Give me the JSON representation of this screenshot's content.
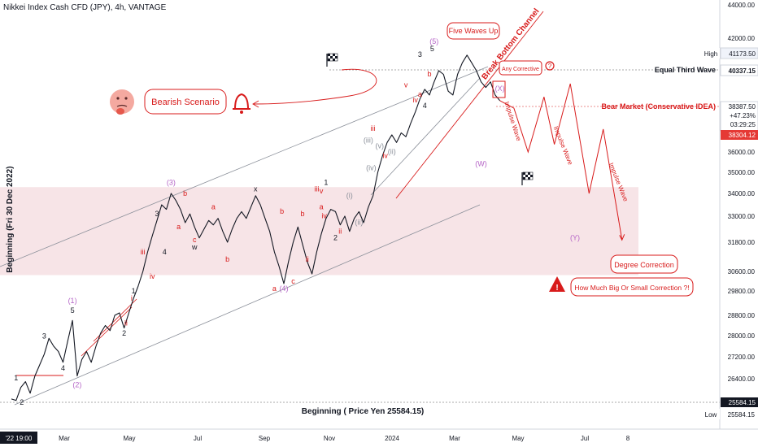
{
  "chart_data": {
    "type": "line",
    "title": "Nikkei Index Cash CFD (JPY), 4h, VANTAGE",
    "price_axis": {
      "ticks": [
        "44000.00",
        "42000.00",
        "41173.50",
        "40337.15",
        "38387.50",
        "38304.12",
        "36000.00",
        "35000.00",
        "34000.00",
        "33000.00",
        "31800.00",
        "30600.00",
        "29800.00",
        "28800.00",
        "28000.00",
        "27200.00",
        "26400.00",
        "25584.15"
      ],
      "current": {
        "price": "38387.50",
        "change": "+47.23%",
        "countdown": "03:29:25",
        "bid": "38304.12"
      },
      "high_label": "High",
      "high_value": "41173.50",
      "level_value": "40337.15",
      "low_label": "Low",
      "low_value": "25584.15",
      "ylim": [
        25100,
        44300
      ]
    },
    "time_axis": {
      "ticks": [
        "'22 19:00",
        "Mar",
        "May",
        "Jul",
        "Sep",
        "Nov",
        "2024",
        "Mar",
        "May",
        "Jul",
        "8"
      ]
    },
    "price_series": [
      [
        0,
        25700
      ],
      [
        0.5,
        25650
      ],
      [
        1,
        26100
      ],
      [
        1.5,
        26300
      ],
      [
        2,
        25900
      ],
      [
        2.5,
        26500
      ],
      [
        3,
        26900
      ],
      [
        3.5,
        27300
      ],
      [
        4,
        27900
      ],
      [
        4.5,
        27600
      ],
      [
        5,
        27400
      ],
      [
        5.5,
        27000
      ],
      [
        6,
        27800
      ],
      [
        6.5,
        28600
      ],
      [
        7,
        26500
      ],
      [
        7.5,
        27100
      ],
      [
        8,
        27400
      ],
      [
        8.5,
        27000
      ],
      [
        9,
        27600
      ],
      [
        9.5,
        28100
      ],
      [
        10,
        28400
      ],
      [
        10.5,
        28200
      ],
      [
        11,
        28800
      ],
      [
        11.5,
        28900
      ],
      [
        12,
        28300
      ],
      [
        12.5,
        28900
      ],
      [
        13,
        29500
      ],
      [
        13.5,
        30000
      ],
      [
        14,
        30600
      ],
      [
        14.5,
        31400
      ],
      [
        15,
        32100
      ],
      [
        15.5,
        32800
      ],
      [
        16,
        33500
      ],
      [
        16.5,
        33300
      ],
      [
        17,
        34000
      ],
      [
        17.5,
        33700
      ],
      [
        18,
        33300
      ],
      [
        18.5,
        32700
      ],
      [
        19,
        33100
      ],
      [
        19.5,
        32500
      ],
      [
        20,
        32000
      ],
      [
        20.5,
        32400
      ],
      [
        21,
        32800
      ],
      [
        21.5,
        32600
      ],
      [
        22,
        32900
      ],
      [
        22.5,
        32300
      ],
      [
        23,
        31800
      ],
      [
        23.5,
        32400
      ],
      [
        24,
        32900
      ],
      [
        24.5,
        33200
      ],
      [
        25,
        32900
      ],
      [
        25.5,
        33400
      ],
      [
        26,
        33900
      ],
      [
        26.5,
        33500
      ],
      [
        27,
        32900
      ],
      [
        27.5,
        32300
      ],
      [
        28,
        31400
      ],
      [
        28.5,
        30800
      ],
      [
        29,
        30100
      ],
      [
        29.5,
        31000
      ],
      [
        30,
        31800
      ],
      [
        30.5,
        32500
      ],
      [
        31,
        31700
      ],
      [
        31.5,
        31000
      ],
      [
        32,
        30500
      ],
      [
        32.5,
        31400
      ],
      [
        33,
        32200
      ],
      [
        33.5,
        32900
      ],
      [
        34,
        33300
      ],
      [
        34.5,
        33200
      ],
      [
        35,
        32600
      ],
      [
        35.5,
        33000
      ],
      [
        36,
        32300
      ],
      [
        36.5,
        32900
      ],
      [
        37,
        33200
      ],
      [
        37.5,
        32700
      ],
      [
        38,
        33400
      ],
      [
        38.5,
        33900
      ],
      [
        39,
        35000
      ],
      [
        39.5,
        35800
      ],
      [
        40,
        36500
      ],
      [
        40.5,
        36900
      ],
      [
        41,
        36500
      ],
      [
        41.5,
        37000
      ],
      [
        42,
        36800
      ],
      [
        42.5,
        37500
      ],
      [
        43,
        38100
      ],
      [
        43.5,
        38800
      ],
      [
        44,
        39300
      ],
      [
        44.5,
        39000
      ],
      [
        45,
        39700
      ],
      [
        45.5,
        40300
      ],
      [
        46,
        40100
      ],
      [
        46.5,
        39200
      ],
      [
        47,
        39000
      ],
      [
        47.5,
        40100
      ],
      [
        48,
        40700
      ],
      [
        48.5,
        41100
      ],
      [
        49,
        40700
      ],
      [
        49.5,
        40300
      ],
      [
        50,
        39700
      ],
      [
        50.5,
        39400
      ],
      [
        51,
        39700
      ],
      [
        51.5,
        39000
      ],
      [
        52,
        38700
      ]
    ],
    "projection_path": [
      [
        52,
        38700
      ],
      [
        53.5,
        38300
      ],
      [
        55,
        36000
      ],
      [
        56.7,
        38900
      ],
      [
        57.8,
        36400
      ],
      [
        59.5,
        39600
      ],
      [
        61.5,
        34000
      ],
      [
        63,
        37200
      ],
      [
        65,
        31900
      ]
    ],
    "wave_labels": [
      {
        "t": "1",
        "x": 0.5,
        "y": 26350,
        "c": "black"
      },
      {
        "t": "2",
        "x": 1.1,
        "y": 25500,
        "c": "black"
      },
      {
        "t": "3",
        "x": 3.5,
        "y": 27900,
        "c": "black"
      },
      {
        "t": "4",
        "x": 5.5,
        "y": 26700,
        "c": "black"
      },
      {
        "t": "5",
        "x": 6.5,
        "y": 28900,
        "c": "black"
      },
      {
        "t": "(1)",
        "x": 6.5,
        "y": 29300,
        "c": "purple"
      },
      {
        "t": "(2)",
        "x": 7,
        "y": 26100,
        "c": "purple"
      },
      {
        "t": "(3)",
        "x": 17,
        "y": 34400,
        "c": "purple"
      },
      {
        "t": "(4)",
        "x": 29,
        "y": 29800,
        "c": "purple"
      },
      {
        "t": "i",
        "x": 12.8,
        "y": 29400,
        "c": "red"
      },
      {
        "t": "ii",
        "x": 12.2,
        "y": 28400,
        "c": "red"
      },
      {
        "t": "iii",
        "x": 14,
        "y": 31300,
        "c": "red"
      },
      {
        "t": "iv",
        "x": 15,
        "y": 30300,
        "c": "red"
      },
      {
        "t": "1",
        "x": 13,
        "y": 29700,
        "c": "black"
      },
      {
        "t": "2",
        "x": 12,
        "y": 28000,
        "c": "black"
      },
      {
        "t": "3",
        "x": 15.5,
        "y": 33000,
        "c": "black"
      },
      {
        "t": "4",
        "x": 16.3,
        "y": 31300,
        "c": "black"
      },
      {
        "t": "a",
        "x": 17.8,
        "y": 32400,
        "c": "red"
      },
      {
        "t": "b",
        "x": 18.5,
        "y": 33900,
        "c": "red"
      },
      {
        "t": "a",
        "x": 21.5,
        "y": 33300,
        "c": "red"
      },
      {
        "t": "c",
        "x": 19.5,
        "y": 31800,
        "c": "red"
      },
      {
        "t": "w",
        "x": 19.5,
        "y": 31500,
        "c": "black"
      },
      {
        "t": "b",
        "x": 23,
        "y": 31000,
        "c": "red"
      },
      {
        "t": "x",
        "x": 26,
        "y": 34100,
        "c": "black"
      },
      {
        "t": "b",
        "x": 28.8,
        "y": 33100,
        "c": "red"
      },
      {
        "t": "a",
        "x": 28,
        "y": 29800,
        "c": "red"
      },
      {
        "t": "c",
        "x": 30,
        "y": 30100,
        "c": "red"
      },
      {
        "t": "ii",
        "x": 31.5,
        "y": 31000,
        "c": "red"
      },
      {
        "t": "iii",
        "x": 32.5,
        "y": 34100,
        "c": "red"
      },
      {
        "t": "iv",
        "x": 33.3,
        "y": 32900,
        "c": "red"
      },
      {
        "t": "b",
        "x": 31,
        "y": 33000,
        "c": "red"
      },
      {
        "t": "1",
        "x": 33.5,
        "y": 34400,
        "c": "black"
      },
      {
        "t": "v",
        "x": 33,
        "y": 34000,
        "c": "red"
      },
      {
        "t": "a",
        "x": 33,
        "y": 33300,
        "c": "red"
      },
      {
        "t": "2",
        "x": 34.5,
        "y": 31900,
        "c": "black"
      },
      {
        "t": "ii",
        "x": 35,
        "y": 32200,
        "c": "red"
      },
      {
        "t": "(i)",
        "x": 36,
        "y": 33800,
        "c": "gray"
      },
      {
        "t": "(ii)",
        "x": 37,
        "y": 32600,
        "c": "gray"
      },
      {
        "t": "iii",
        "x": 38.5,
        "y": 37100,
        "c": "red"
      },
      {
        "t": "(iii)",
        "x": 38,
        "y": 36500,
        "c": "gray"
      },
      {
        "t": "(iv)",
        "x": 38.3,
        "y": 35100,
        "c": "gray"
      },
      {
        "t": "(v)",
        "x": 39.2,
        "y": 36200,
        "c": "gray"
      },
      {
        "t": "iv",
        "x": 39.8,
        "y": 35700,
        "c": "red"
      },
      {
        "t": "(ii)",
        "x": 40.5,
        "y": 35900,
        "c": "gray"
      },
      {
        "t": "v",
        "x": 42,
        "y": 39400,
        "c": "red"
      },
      {
        "t": "iv",
        "x": 43,
        "y": 38600,
        "c": "red"
      },
      {
        "t": "3",
        "x": 43.5,
        "y": 41000,
        "c": "black"
      },
      {
        "t": "4",
        "x": 44,
        "y": 38300,
        "c": "black"
      },
      {
        "t": "5",
        "x": 44.8,
        "y": 41300,
        "c": "black"
      },
      {
        "t": "(5)",
        "x": 45,
        "y": 41700,
        "c": "purple"
      },
      {
        "t": "a",
        "x": 43.5,
        "y": 38900,
        "c": "red"
      },
      {
        "t": "b",
        "x": 44.5,
        "y": 40000,
        "c": "red"
      },
      {
        "t": "(W)",
        "x": 50,
        "y": 35300,
        "c": "purple"
      },
      {
        "t": "(X)",
        "x": 52,
        "y": 39200,
        "c": "purple"
      },
      {
        "t": "(Y)",
        "x": 60,
        "y": 31900,
        "c": "purple"
      }
    ],
    "annotations": {
      "five_waves_up": "Five Waves Up",
      "break_channel": "Break Bottom Channel",
      "any_corrective": "Any Corrective",
      "bearish_scenario": "Bearish Scenario",
      "equal_third_wave": "Equal Third Wave",
      "bear_market": "Bear Market (Conservative IDEA)",
      "impulse_wave": "Impulse Wave",
      "degree_correction": "Degree Correction",
      "how_much": "How Much Big Or Small Correction ?!",
      "y_axis_label": "Beginning (Fri 30 Dec 2022)",
      "x_axis_label": "Beginning ( Price Yen 25584.15)"
    },
    "colors": {
      "red": "#d81b1b",
      "purple": "#b565c7",
      "zone_fill": "#f6dfe3",
      "bid_bg": "#e53935",
      "dark": "#131722"
    }
  }
}
